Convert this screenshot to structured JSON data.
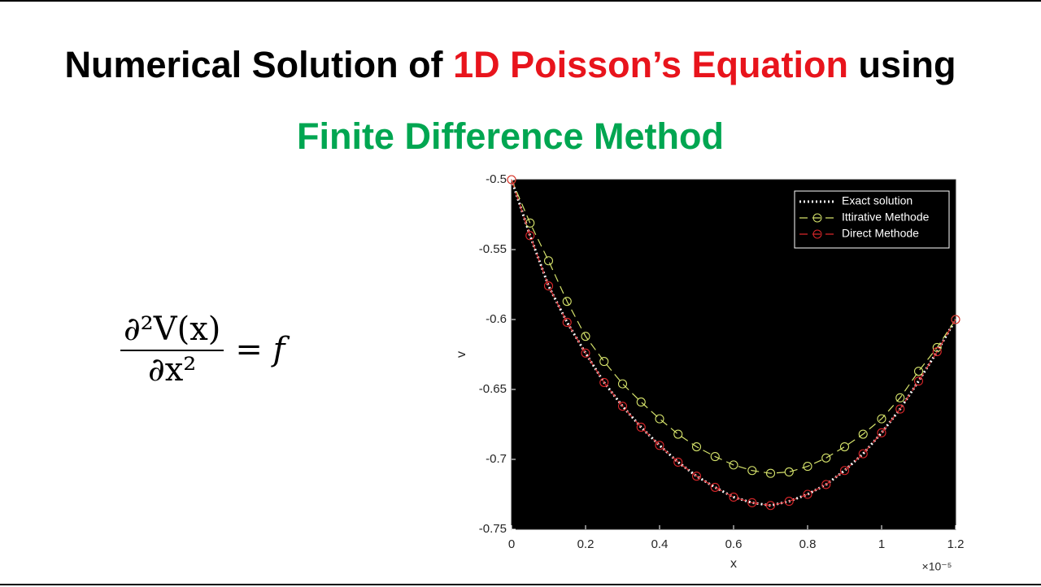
{
  "title_parts": [
    {
      "text": "Numerical Solution of ",
      "color": "#000000"
    },
    {
      "text": "1D Poisson’s Equation",
      "color": "#e8141c"
    },
    {
      "text": " using",
      "color": "#000000"
    }
  ],
  "subtitle": "Finite Difference Method",
  "formula": {
    "numerator": "∂²V(x)",
    "denominator": "∂x²",
    "rhs": "= f"
  },
  "chart_data": {
    "type": "line",
    "xlabel": "x",
    "ylabel": "v",
    "x_multiplier": "×10⁻⁵",
    "background": "#000000",
    "legend": "upper right",
    "x": [
      0,
      0.05,
      0.1,
      0.15,
      0.2,
      0.25,
      0.3,
      0.35,
      0.4,
      0.45,
      0.5,
      0.55,
      0.6,
      0.65,
      0.7,
      0.75,
      0.8,
      0.85,
      0.9,
      0.95,
      1.0,
      1.05,
      1.1,
      1.15,
      1.2
    ],
    "series": [
      {
        "name": "Exact solution",
        "color": "#ffffff",
        "line_style": "dotted",
        "marker": "none",
        "values": [
          -0.5,
          -0.54,
          -0.576,
          -0.602,
          -0.624,
          -0.645,
          -0.662,
          -0.677,
          -0.69,
          -0.702,
          -0.712,
          -0.72,
          -0.727,
          -0.731,
          -0.733,
          -0.73,
          -0.725,
          -0.718,
          -0.708,
          -0.696,
          -0.681,
          -0.664,
          -0.644,
          -0.623,
          -0.6
        ]
      },
      {
        "name": "Ittirative Methode",
        "color": "#d6e36b",
        "line_style": "dashed",
        "marker": "circle",
        "values": [
          -0.5,
          -0.531,
          -0.558,
          -0.587,
          -0.612,
          -0.63,
          -0.646,
          -0.659,
          -0.671,
          -0.682,
          -0.691,
          -0.698,
          -0.704,
          -0.708,
          -0.71,
          -0.709,
          -0.705,
          -0.699,
          -0.691,
          -0.682,
          -0.671,
          -0.656,
          -0.637,
          -0.62,
          -0.6
        ]
      },
      {
        "name": "Direct Methode",
        "color": "#d9262a",
        "line_style": "dashed",
        "marker": "circle",
        "values": [
          -0.5,
          -0.54,
          -0.576,
          -0.602,
          -0.624,
          -0.645,
          -0.662,
          -0.677,
          -0.69,
          -0.702,
          -0.712,
          -0.72,
          -0.727,
          -0.731,
          -0.733,
          -0.73,
          -0.725,
          -0.718,
          -0.708,
          -0.696,
          -0.681,
          -0.664,
          -0.644,
          -0.623,
          -0.6
        ]
      }
    ],
    "xlim": [
      0,
      1.2
    ],
    "xticks": [
      0,
      0.2,
      0.4,
      0.6,
      0.8,
      1,
      1.2
    ],
    "ylim": [
      -0.75,
      -0.5
    ],
    "yticks": [
      -0.75,
      -0.7,
      -0.65,
      -0.6,
      -0.55,
      -0.5
    ]
  }
}
